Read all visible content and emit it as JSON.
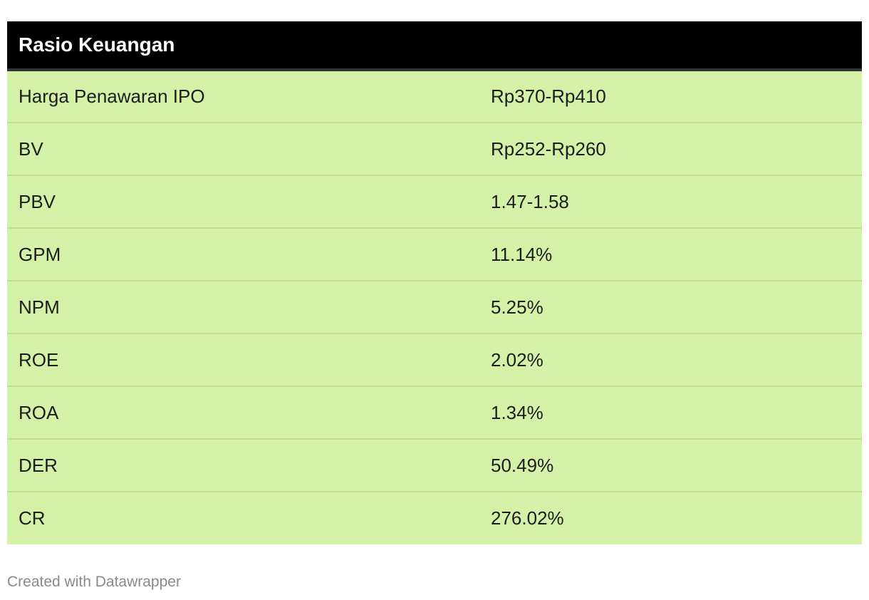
{
  "chart_data": {
    "type": "table",
    "title": "Rasio Keuangan",
    "rows": [
      {
        "label": "Harga Penawaran IPO",
        "value": "Rp370-Rp410"
      },
      {
        "label": "BV",
        "value": "Rp252-Rp260"
      },
      {
        "label": "PBV",
        "value": "1.47-1.58"
      },
      {
        "label": "GPM",
        "value": "11.14%"
      },
      {
        "label": "NPM",
        "value": "5.25%"
      },
      {
        "label": "ROE",
        "value": "2.02%"
      },
      {
        "label": "ROA",
        "value": "1.34%"
      },
      {
        "label": "DER",
        "value": "50.49%"
      },
      {
        "label": "CR",
        "value": "276.02%"
      }
    ],
    "colors": {
      "header_bg": "#000000",
      "header_text": "#ffffff",
      "row_bg": "#d4f1a8"
    }
  },
  "footer": {
    "credit": "Created with Datawrapper"
  }
}
